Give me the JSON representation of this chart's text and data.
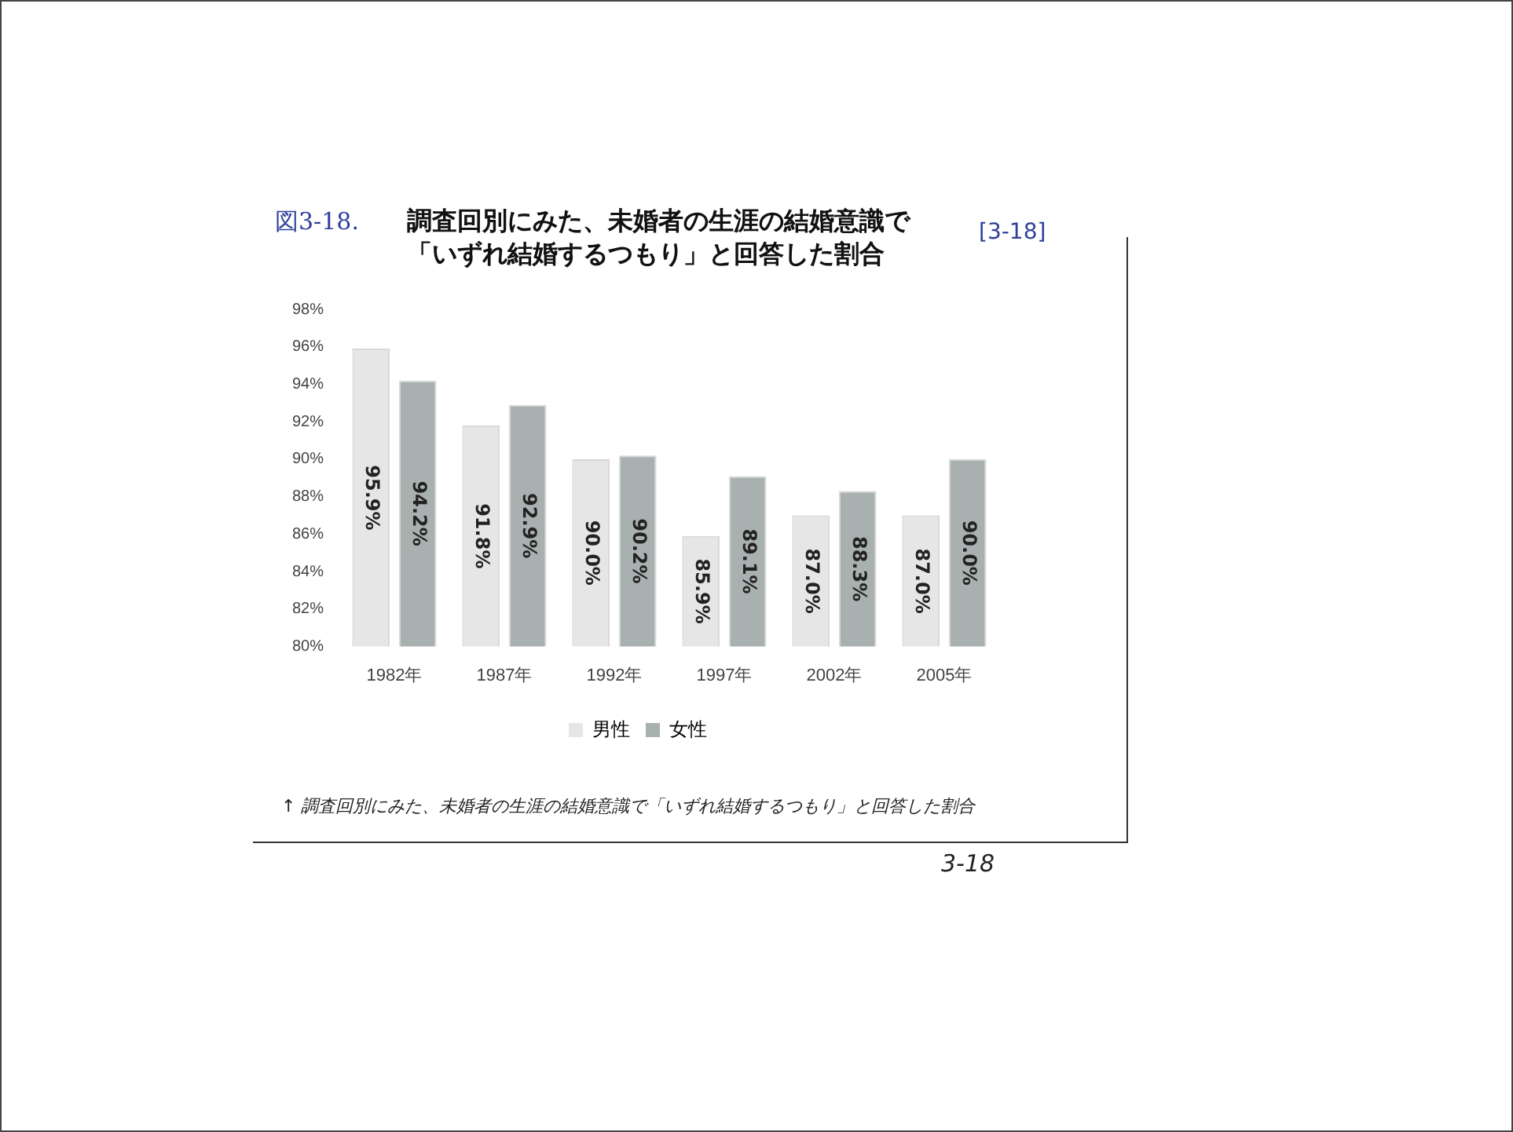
{
  "chart_data": {
    "type": "bar",
    "title": "調査回別にみた、未婚者の生涯の結婚意識で「いずれ結婚するつもり」と回答した割合",
    "categories": [
      "1982年",
      "1987年",
      "1992年",
      "1997年",
      "2002年",
      "2005年"
    ],
    "series": [
      {
        "name": "男性",
        "color": "#e6e6e6",
        "values": [
          95.9,
          91.8,
          90.0,
          85.9,
          87.0,
          87.0
        ],
        "value_labels": [
          "95.9%",
          "91.8%",
          "90.0%",
          "85.9%",
          "87.0%",
          "87.0%"
        ]
      },
      {
        "name": "女性",
        "color": "#a9b0b0",
        "values": [
          94.2,
          92.9,
          90.2,
          89.1,
          88.3,
          90.0
        ],
        "value_labels": [
          "94.2%",
          "92.9%",
          "90.2%",
          "89.1%",
          "88.3%",
          "90.0%"
        ]
      }
    ],
    "ylim": [
      80,
      98
    ],
    "yticks": [
      {
        "value": 80,
        "label": "80%"
      },
      {
        "value": 82,
        "label": "82%"
      },
      {
        "value": 84,
        "label": "84%"
      },
      {
        "value": 86,
        "label": "86%"
      },
      {
        "value": 88,
        "label": "88%"
      },
      {
        "value": 90,
        "label": "90%"
      },
      {
        "value": 92,
        "label": "92%"
      },
      {
        "value": 94,
        "label": "94%"
      },
      {
        "value": 96,
        "label": "96%"
      },
      {
        "value": 98,
        "label": "98%"
      }
    ],
    "grid": false,
    "legend": "bottom",
    "annotations": [
      "図3-18.",
      "[3-18]",
      "↑ 調査回別にみた、未婚者の生涯の結婚意識で「いずれ結婚するつもり」と回答した割合",
      "3-18"
    ]
  }
}
